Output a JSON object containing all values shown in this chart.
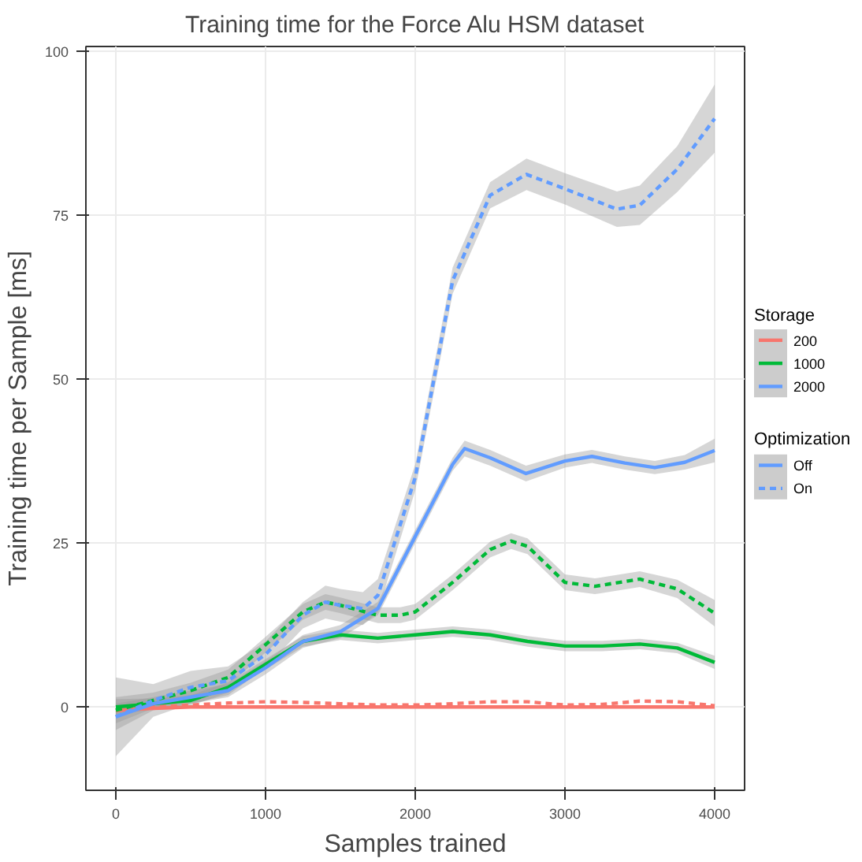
{
  "chart_data": {
    "type": "line",
    "title": "Training time for the Force Alu HSM dataset",
    "xlabel": "Samples trained",
    "ylabel": "Training time per Sample [ms]",
    "legend_title": [
      "Storage",
      "Optimization"
    ],
    "annotations": [
      "Off",
      "On"
    ],
    "legend": "right",
    "grid": true,
    "xlim": [
      -200,
      4200
    ],
    "xticks": [
      0,
      1000,
      2000,
      3000,
      4000
    ],
    "ylim": [
      -12.7,
      100.7
    ],
    "yticks": [
      0,
      25,
      50,
      75,
      100
    ],
    "series": [
      {
        "name": "200",
        "color": "#f8766d",
        "line_style": "solid",
        "x": [
          0,
          250,
          500,
          1000,
          1500,
          2000,
          2500,
          3000,
          3500,
          4000
        ],
        "values": [
          -0.5,
          -0.2,
          0,
          0,
          0,
          0,
          0,
          0,
          0,
          0
        ]
      },
      {
        "color": "#f8766d",
        "line_style": "dashed",
        "x": [
          0,
          250,
          500,
          750,
          1000,
          1250,
          1500,
          1750,
          2000,
          2250,
          2500,
          2750,
          3000,
          3250,
          3500,
          3750,
          4000
        ],
        "values": [
          -0.5,
          0,
          0.3,
          0.6,
          0.8,
          0.7,
          0.5,
          0.3,
          0.3,
          0.5,
          0.8,
          0.8,
          0.3,
          0.4,
          0.9,
          0.8,
          0.2
        ]
      },
      {
        "name": "1000",
        "color": "#00ba38",
        "line_style": "solid",
        "x": [
          0,
          250,
          500,
          750,
          1000,
          1250,
          1500,
          1750,
          2000,
          2250,
          2500,
          2750,
          3000,
          3250,
          3500,
          3750,
          4000
        ],
        "values": [
          0,
          0.5,
          1,
          3,
          6.5,
          10,
          11,
          10.5,
          11,
          11.5,
          11,
          10,
          9.3,
          9.3,
          9.6,
          9,
          6.8
        ],
        "lower": [
          -1.2,
          -0.3,
          0.2,
          2.2,
          5.7,
          9.2,
          10.2,
          9.7,
          10.2,
          10.7,
          10.2,
          9.2,
          8.5,
          8.5,
          8.8,
          8.2,
          5.8
        ],
        "upper": [
          1.2,
          1.3,
          1.8,
          3.8,
          7.3,
          10.8,
          11.8,
          11.3,
          11.8,
          12.3,
          11.8,
          10.8,
          10.1,
          10.1,
          10.4,
          9.8,
          7.8
        ]
      },
      {
        "color": "#00ba38",
        "line_style": "dashed",
        "x": [
          0,
          250,
          500,
          750,
          1000,
          1250,
          1400,
          1500,
          1750,
          1900,
          2000,
          2250,
          2500,
          2640,
          2750,
          3000,
          3200,
          3500,
          3750,
          4000
        ],
        "values": [
          -0.5,
          1,
          2.5,
          4.5,
          9.5,
          14.5,
          16,
          15.5,
          14,
          14,
          14.5,
          19,
          24,
          25.3,
          24.5,
          19,
          18.4,
          19.5,
          18,
          14.3
        ],
        "lower": [
          -2.5,
          -0.2,
          1.3,
          3.3,
          8.3,
          13.3,
          14.8,
          14.3,
          12.8,
          12.8,
          13.3,
          17.8,
          22.8,
          24.1,
          23.3,
          17.8,
          17.2,
          18.3,
          16.6,
          12.3
        ],
        "upper": [
          1.5,
          2.2,
          3.7,
          5.7,
          10.7,
          15.7,
          17.2,
          16.7,
          15.2,
          15.2,
          15.7,
          20.2,
          25.2,
          26.5,
          25.7,
          20.2,
          19.6,
          20.7,
          19.4,
          16.3
        ]
      },
      {
        "name": "2000",
        "color": "#619cff",
        "line_style": "solid",
        "x": [
          0,
          250,
          500,
          750,
          1000,
          1250,
          1500,
          1750,
          2000,
          2250,
          2330,
          2500,
          2740,
          3000,
          3180,
          3400,
          3600,
          3800,
          4000
        ],
        "values": [
          -1.5,
          0.5,
          1.5,
          2.5,
          6,
          10,
          11.5,
          15,
          26,
          37,
          39.4,
          38,
          35.6,
          37.5,
          38.2,
          37.2,
          36.5,
          37.3,
          39.1
        ],
        "lower": [
          -3.5,
          -0.5,
          0.5,
          1.5,
          5,
          9,
          10.5,
          14,
          25,
          36,
          38.2,
          36.8,
          34.4,
          36.5,
          37.2,
          36.2,
          35.5,
          36.2,
          37.3
        ],
        "upper": [
          0.5,
          1.5,
          2.5,
          3.5,
          7,
          11,
          12.5,
          16,
          27,
          38,
          40.6,
          39.2,
          36.8,
          38.5,
          39.2,
          38.2,
          37.5,
          38.4,
          40.9
        ]
      },
      {
        "color": "#619cff",
        "line_style": "dashed",
        "x": [
          0,
          250,
          500,
          750,
          1000,
          1250,
          1400,
          1500,
          1650,
          1750,
          2000,
          2250,
          2500,
          2743,
          3000,
          3347,
          3500,
          3750,
          4000
        ],
        "values": [
          -1.5,
          1,
          3,
          4,
          8,
          14,
          16,
          15.5,
          15,
          17,
          35,
          65,
          78,
          81.2,
          79,
          75.9,
          76.5,
          82,
          89.7
        ],
        "lower": [
          -7.5,
          -1.5,
          0.5,
          1.8,
          6,
          12,
          13.5,
          13,
          12.5,
          14.5,
          33,
          63,
          76,
          78.8,
          76.6,
          73.2,
          73.5,
          78.5,
          84.5
        ],
        "upper": [
          4.5,
          3.5,
          5.5,
          6.2,
          10,
          16,
          18.5,
          18,
          17.5,
          19.5,
          37,
          67,
          80,
          83.6,
          81.4,
          78.6,
          79.5,
          85.5,
          94.9
        ]
      }
    ]
  }
}
